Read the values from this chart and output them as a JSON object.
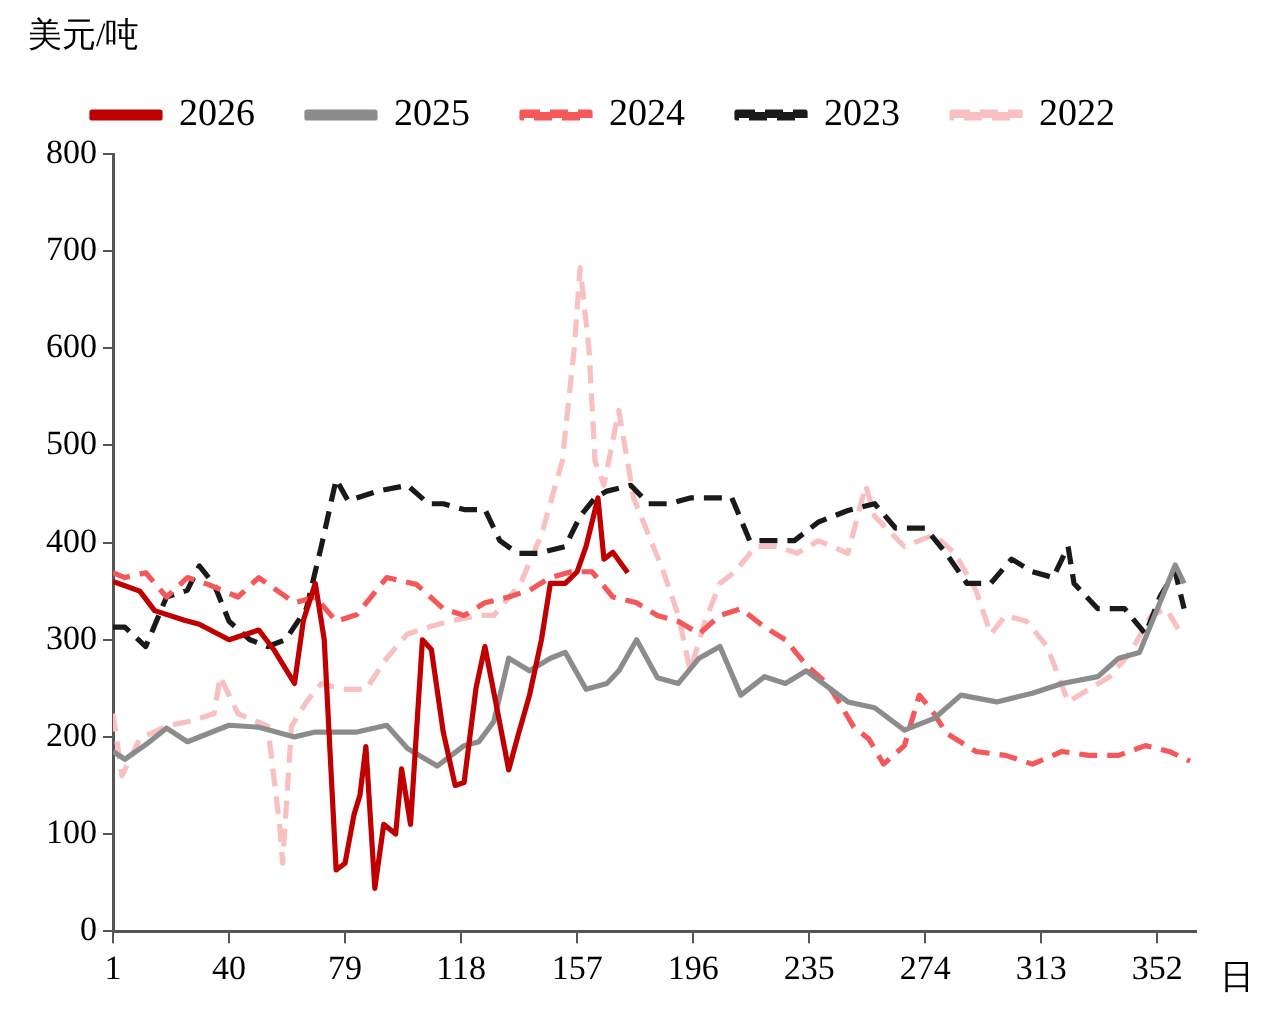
{
  "chart_data": {
    "type": "line",
    "xlabel": "日",
    "ylabel": "美元/吨",
    "xlim": [
      1,
      365
    ],
    "xticks": [
      1,
      40,
      79,
      118,
      157,
      196,
      235,
      274,
      313,
      352
    ],
    "ylim": [
      0,
      800
    ],
    "yticks": [
      0,
      100,
      200,
      300,
      400,
      500,
      600,
      700,
      800
    ],
    "grid": false,
    "legend": "top",
    "marker": "none",
    "series": [
      {
        "name": "2026",
        "color": "#c00000",
        "line_style": "solid",
        "x": [
          1,
          10,
          15,
          25,
          30,
          40,
          50,
          55,
          62,
          65,
          69,
          72,
          76,
          79,
          82,
          84,
          86,
          89,
          92,
          96,
          98,
          101,
          105,
          108,
          112,
          116,
          119,
          123,
          126,
          130,
          134,
          137,
          141,
          145,
          148,
          153,
          157,
          160,
          164,
          166,
          169,
          174
        ],
        "values": [
          360,
          350,
          330,
          320,
          316,
          300,
          310,
          290,
          255,
          320,
          358,
          300,
          63,
          70,
          120,
          140,
          190,
          44,
          110,
          100,
          167,
          110,
          300,
          290,
          205,
          150,
          153,
          250,
          293,
          230,
          166,
          200,
          243,
          300,
          358,
          358,
          370,
          396,
          446,
          383,
          390,
          369
        ]
      },
      {
        "name": "2025",
        "color": "#8c8c8c",
        "line_style": "solid",
        "x": [
          1,
          5,
          12,
          19,
          26,
          40,
          50,
          62,
          69,
          83,
          93,
          100,
          110,
          119,
          124,
          129,
          134,
          141,
          148,
          153,
          160,
          167,
          171,
          177,
          184,
          191,
          198,
          205,
          212,
          220,
          227,
          234,
          248,
          257,
          267,
          277,
          286,
          298,
          310,
          320,
          332,
          339,
          346,
          353,
          358,
          361
        ],
        "values": [
          185,
          177,
          192,
          209,
          195,
          212,
          210,
          200,
          205,
          205,
          212,
          188,
          170,
          191,
          195,
          216,
          281,
          268,
          281,
          287,
          249,
          255,
          268,
          300,
          261,
          255,
          281,
          293,
          243,
          262,
          255,
          268,
          236,
          230,
          207,
          219,
          243,
          236,
          245,
          255,
          262,
          281,
          287,
          339,
          377,
          358
        ]
      },
      {
        "name": "2024",
        "color": "#f4585a",
        "line_style": "dashed",
        "x": [
          1,
          5,
          12,
          19,
          26,
          33,
          43,
          50,
          62,
          69,
          76,
          83,
          93,
          103,
          112,
          119,
          126,
          134,
          141,
          148,
          155,
          162,
          169,
          177,
          184,
          191,
          198,
          205,
          212,
          220,
          227,
          234,
          241,
          245,
          250,
          255,
          260,
          267,
          272,
          277,
          281,
          291,
          301,
          310,
          320,
          329,
          339,
          348,
          356,
          363
        ],
        "values": [
          369,
          364,
          369,
          344,
          364,
          357,
          344,
          364,
          338,
          344,
          319,
          326,
          364,
          357,
          332,
          325,
          338,
          344,
          351,
          364,
          370,
          370,
          344,
          338,
          325,
          319,
          306,
          325,
          332,
          313,
          300,
          274,
          255,
          236,
          210,
          198,
          172,
          191,
          243,
          224,
          204,
          185,
          181,
          172,
          185,
          181,
          181,
          191,
          185,
          175
        ]
      },
      {
        "name": "2023",
        "color": "#1a1a1a",
        "line_style": "dashed",
        "x": [
          1,
          5,
          12,
          19,
          26,
          30,
          35,
          40,
          47,
          53,
          59,
          66,
          71,
          76,
          80,
          90,
          100,
          107,
          112,
          119,
          126,
          131,
          137,
          144,
          153,
          158,
          163,
          167,
          175,
          181,
          188,
          195,
          205,
          209,
          215,
          222,
          230,
          238,
          248,
          257,
          264,
          274,
          281,
          288,
          296,
          303,
          310,
          317,
          322,
          324,
          332,
          341,
          348,
          353,
          358,
          361
        ],
        "values": [
          313,
          313,
          293,
          344,
          351,
          376,
          357,
          319,
          300,
          293,
          300,
          332,
          396,
          465,
          443,
          453,
          459,
          440,
          440,
          434,
          434,
          402,
          389,
          389,
          396,
          427,
          446,
          453,
          459,
          440,
          440,
          446,
          446,
          446,
          402,
          402,
          402,
          421,
          433,
          440,
          415,
          415,
          389,
          358,
          358,
          383,
          370,
          364,
          396,
          358,
          332,
          332,
          306,
          345,
          370,
          332
        ]
      },
      {
        "name": "2022",
        "color": "#f8c0c0",
        "line_style": "dashed",
        "x": [
          1,
          4,
          10,
          19,
          28,
          35,
          37,
          43,
          53,
          57,
          58,
          61,
          66,
          71,
          78,
          86,
          93,
          100,
          107,
          114,
          124,
          129,
          138,
          145,
          152,
          156,
          158,
          161,
          163,
          166,
          171,
          176,
          181,
          186,
          191,
          195,
          200,
          205,
          210,
          217,
          224,
          231,
          238,
          248,
          254,
          257,
          267,
          277,
          284,
          291,
          296,
          301,
          308,
          315,
          322,
          329,
          336,
          343,
          350,
          355,
          360
        ],
        "values": [
          224,
          160,
          198,
          211,
          217,
          224,
          262,
          224,
          211,
          109,
          70,
          211,
          236,
          255,
          249,
          249,
          281,
          306,
          313,
          319,
          325,
          325,
          358,
          408,
          484,
          599,
          683,
          599,
          484,
          459,
          536,
          446,
          408,
          370,
          325,
          268,
          319,
          358,
          370,
          396,
          396,
          389,
          402,
          389,
          459,
          427,
          396,
          408,
          389,
          351,
          306,
          325,
          319,
          293,
          236,
          249,
          262,
          287,
          325,
          332,
          306
        ]
      }
    ]
  }
}
